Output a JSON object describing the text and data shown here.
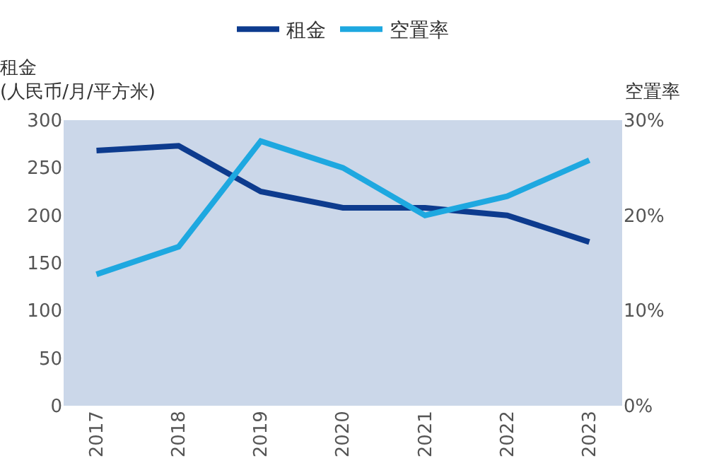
{
  "chart_data": {
    "type": "line",
    "ylabel": "租金\n(人民币/月/平方米)",
    "y2label": "空置率",
    "categories": [
      "2017",
      "2018",
      "2019",
      "2020",
      "2021",
      "2022",
      "2023"
    ],
    "series": [
      {
        "name": "租金",
        "color": "#0d3b8e",
        "values": [
          268,
          273,
          225,
          208,
          208,
          200,
          172
        ]
      },
      {
        "name": "空置率",
        "color": "#1ea8e0",
        "axis": "y2",
        "values": [
          13.8,
          16.7,
          27.8,
          25,
          20,
          22,
          25.8
        ]
      }
    ],
    "ylim": [
      0,
      300
    ],
    "yticks": [
      0,
      50,
      100,
      150,
      200,
      250,
      300
    ],
    "y2lim": [
      0,
      30
    ],
    "y2ticks": [
      {
        "value": 0,
        "label": "0%"
      },
      {
        "value": 10,
        "label": "10%"
      },
      {
        "value": 20,
        "label": "20%"
      },
      {
        "value": 30,
        "label": "30%"
      }
    ],
    "grid": false,
    "legend": "top",
    "marker": "none",
    "line_style": "solid"
  }
}
